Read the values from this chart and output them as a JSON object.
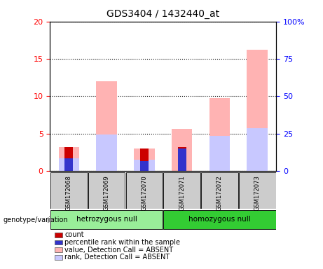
{
  "title": "GDS3404 / 1432440_at",
  "samples": [
    "GSM172068",
    "GSM172069",
    "GSM172070",
    "GSM172071",
    "GSM172072",
    "GSM172073"
  ],
  "count_values": [
    3.2,
    0.0,
    3.0,
    3.2,
    0.0,
    0.0
  ],
  "rank_values": [
    1.7,
    0.0,
    1.3,
    3.0,
    0.0,
    0.0
  ],
  "absent_value": [
    3.2,
    12.0,
    3.0,
    5.6,
    9.7,
    16.2
  ],
  "absent_rank": [
    1.7,
    4.9,
    1.5,
    0.0,
    4.7,
    5.7
  ],
  "ylim_left": [
    0,
    20
  ],
  "ylim_right": [
    0,
    100
  ],
  "yticks_left": [
    0,
    5,
    10,
    15,
    20
  ],
  "yticks_right": [
    0,
    25,
    50,
    75,
    100
  ],
  "ytick_labels_right": [
    "0",
    "25",
    "50",
    "75",
    "100%"
  ],
  "color_count": "#cc0000",
  "color_rank": "#3333cc",
  "color_absent_value": "#ffb3b3",
  "color_absent_rank": "#c8c8ff",
  "background_sample": "#cccccc",
  "group_hetro_color": "#99ee99",
  "group_homo_color": "#33cc33",
  "legend": [
    {
      "label": "count",
      "color": "#cc0000"
    },
    {
      "label": "percentile rank within the sample",
      "color": "#3333cc"
    },
    {
      "label": "value, Detection Call = ABSENT",
      "color": "#ffb3b3"
    },
    {
      "label": "rank, Detection Call = ABSENT",
      "color": "#c8c8ff"
    }
  ]
}
